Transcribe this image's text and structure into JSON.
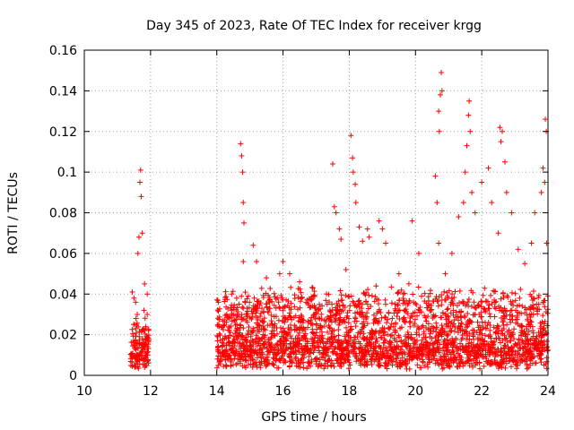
{
  "chart_data": {
    "type": "scatter",
    "title": "Day 345 of 2023, Rate Of TEC Index for receiver krgg",
    "xlabel": "GPS time / hours",
    "ylabel": "ROTI / TECUs",
    "xlim": [
      10,
      24
    ],
    "ylim": [
      0,
      0.16
    ],
    "x_ticks": [
      10,
      12,
      14,
      16,
      18,
      20,
      22,
      24
    ],
    "x_tick_labels": [
      "10",
      "12",
      "14",
      "16",
      "18",
      "20",
      "22",
      "24"
    ],
    "y_ticks": [
      0,
      0.02,
      0.04,
      0.06,
      0.08,
      0.1,
      0.12,
      0.14,
      0.16
    ],
    "y_tick_labels": [
      "0",
      "0.02",
      "0.04",
      "0.06",
      "0.08",
      "0.1",
      "0.12",
      "0.14",
      "0.16"
    ],
    "grid": true,
    "marker": "+",
    "color": "#ff0000",
    "series": [
      {
        "name": "ROTI",
        "points": [
          [
            11.45,
            0.041
          ],
          [
            11.5,
            0.038
          ],
          [
            11.55,
            0.036
          ],
          [
            11.62,
            0.06
          ],
          [
            11.65,
            0.068
          ],
          [
            11.68,
            0.095
          ],
          [
            11.7,
            0.101
          ],
          [
            11.72,
            0.088
          ],
          [
            11.75,
            0.07
          ],
          [
            11.82,
            0.045
          ],
          [
            11.9,
            0.04
          ],
          [
            11.5,
            0.025
          ],
          [
            11.6,
            0.03
          ],
          [
            11.8,
            0.032
          ],
          [
            11.9,
            0.03
          ],
          [
            14.05,
            0.036
          ],
          [
            14.3,
            0.03
          ],
          [
            14.45,
            0.04
          ],
          [
            14.6,
            0.038
          ],
          [
            14.72,
            0.114
          ],
          [
            14.75,
            0.108
          ],
          [
            14.78,
            0.1
          ],
          [
            14.8,
            0.085
          ],
          [
            14.82,
            0.075
          ],
          [
            14.8,
            0.056
          ],
          [
            15.1,
            0.064
          ],
          [
            15.2,
            0.056
          ],
          [
            15.5,
            0.048
          ],
          [
            15.9,
            0.05
          ],
          [
            16.0,
            0.056
          ],
          [
            16.2,
            0.05
          ],
          [
            16.5,
            0.046
          ],
          [
            16.9,
            0.043
          ],
          [
            17.5,
            0.104
          ],
          [
            17.55,
            0.083
          ],
          [
            17.6,
            0.08
          ],
          [
            17.7,
            0.072
          ],
          [
            17.75,
            0.067
          ],
          [
            17.9,
            0.052
          ],
          [
            18.05,
            0.118
          ],
          [
            18.1,
            0.107
          ],
          [
            18.12,
            0.1
          ],
          [
            18.18,
            0.094
          ],
          [
            18.2,
            0.085
          ],
          [
            18.3,
            0.073
          ],
          [
            18.4,
            0.066
          ],
          [
            18.55,
            0.072
          ],
          [
            18.6,
            0.068
          ],
          [
            18.9,
            0.076
          ],
          [
            19.0,
            0.072
          ],
          [
            19.1,
            0.065
          ],
          [
            19.5,
            0.05
          ],
          [
            19.8,
            0.045
          ],
          [
            19.9,
            0.076
          ],
          [
            20.1,
            0.06
          ],
          [
            20.6,
            0.098
          ],
          [
            20.65,
            0.085
          ],
          [
            20.7,
            0.13
          ],
          [
            20.72,
            0.12
          ],
          [
            20.75,
            0.138
          ],
          [
            20.78,
            0.149
          ],
          [
            20.8,
            0.14
          ],
          [
            20.7,
            0.065
          ],
          [
            20.9,
            0.05
          ],
          [
            21.1,
            0.06
          ],
          [
            21.3,
            0.078
          ],
          [
            21.45,
            0.085
          ],
          [
            21.5,
            0.1
          ],
          [
            21.55,
            0.113
          ],
          [
            21.6,
            0.128
          ],
          [
            21.62,
            0.135
          ],
          [
            21.65,
            0.12
          ],
          [
            21.7,
            0.09
          ],
          [
            21.8,
            0.08
          ],
          [
            22.0,
            0.095
          ],
          [
            22.2,
            0.102
          ],
          [
            22.3,
            0.085
          ],
          [
            22.5,
            0.07
          ],
          [
            22.55,
            0.122
          ],
          [
            22.58,
            0.115
          ],
          [
            22.62,
            0.12
          ],
          [
            22.7,
            0.105
          ],
          [
            22.75,
            0.09
          ],
          [
            22.9,
            0.08
          ],
          [
            23.1,
            0.062
          ],
          [
            23.3,
            0.055
          ],
          [
            23.5,
            0.065
          ],
          [
            23.6,
            0.08
          ],
          [
            23.8,
            0.09
          ],
          [
            23.85,
            0.102
          ],
          [
            23.9,
            0.095
          ],
          [
            23.92,
            0.126
          ],
          [
            23.95,
            0.12
          ],
          [
            23.96,
            0.065
          ]
        ]
      }
    ],
    "dense_band_regions": [
      {
        "x_range": [
          11.4,
          11.95
        ],
        "y_range": [
          0.003,
          0.032
        ]
      },
      {
        "x_range": [
          14.0,
          24.0
        ],
        "y_range": [
          0.003,
          0.045
        ]
      }
    ]
  }
}
